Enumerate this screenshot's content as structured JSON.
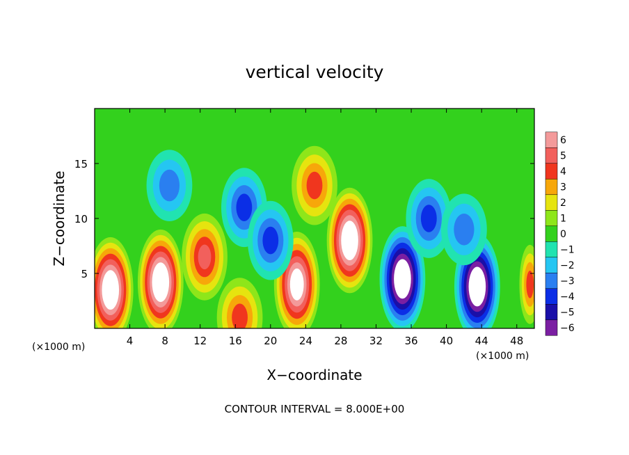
{
  "chart_data": {
    "type": "heatmap",
    "title": "vertical velocity",
    "xlabel": "X−coordinate",
    "ylabel": "Z−coordinate",
    "x_unit_left": "(×1000 m)",
    "x_unit_right": "(×1000 m)",
    "x_ticks": [
      4,
      8,
      12,
      16,
      20,
      24,
      28,
      32,
      36,
      40,
      44,
      48
    ],
    "y_ticks": [
      5,
      10,
      15
    ],
    "xlim": [
      0,
      50
    ],
    "ylim": [
      0,
      20
    ],
    "footnote": "CONTOUR INTERVAL = 8.000E+00",
    "colorbar": {
      "labels": [
        "6",
        "5",
        "4",
        "3",
        "2",
        "1",
        "0",
        "−1",
        "−2",
        "−3",
        "−4",
        "−5",
        "−6"
      ],
      "min": -6,
      "max": 6
    },
    "features": [
      {
        "x": 1.8,
        "z": 3.5,
        "value": 9
      },
      {
        "x": 7.5,
        "z": 4.2,
        "value": 9
      },
      {
        "x": 12.5,
        "z": 6.5,
        "value": 5
      },
      {
        "x": 23.0,
        "z": 4.0,
        "value": 8
      },
      {
        "x": 25.0,
        "z": 13.0,
        "value": 4
      },
      {
        "x": 29.0,
        "z": 8.0,
        "value": 9
      },
      {
        "x": 35.0,
        "z": 4.5,
        "value": -9
      },
      {
        "x": 43.5,
        "z": 3.8,
        "value": -9
      },
      {
        "x": 49.5,
        "z": 4.0,
        "value": 4
      },
      {
        "x": 16.5,
        "z": 1.0,
        "value": 4
      },
      {
        "x": 8.5,
        "z": 13.0,
        "value": -3
      },
      {
        "x": 17.0,
        "z": 11.0,
        "value": -4
      },
      {
        "x": 20.0,
        "z": 8.0,
        "value": -4
      },
      {
        "x": 38.0,
        "z": 10.0,
        "value": -4
      },
      {
        "x": 42.0,
        "z": 9.0,
        "value": -3
      }
    ]
  }
}
